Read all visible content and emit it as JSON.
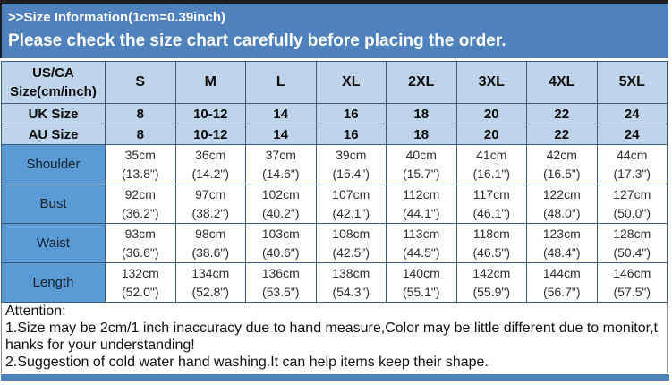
{
  "banner": {
    "line1": ">>Size Information(1cm=0.39inch)",
    "line2": "Please check the size chart carefully before placing the order."
  },
  "table": {
    "corner_header": {
      "line1": "US/CA",
      "line2": "Size(cm/inch)"
    },
    "sizes": [
      "S",
      "M",
      "L",
      "XL",
      "2XL",
      "3XL",
      "4XL",
      "5XL"
    ],
    "size_rows": [
      {
        "label": "UK Size",
        "values": [
          "8",
          "10-12",
          "14",
          "16",
          "18",
          "20",
          "22",
          "24"
        ]
      },
      {
        "label": "AU Size",
        "values": [
          "8",
          "10-12",
          "14",
          "16",
          "18",
          "20",
          "22",
          "24"
        ]
      }
    ],
    "measure_rows": [
      {
        "label": "Shoulder",
        "cm": [
          "35cm",
          "36cm",
          "37cm",
          "39cm",
          "40cm",
          "41cm",
          "42cm",
          "44cm"
        ],
        "inch": [
          "(13.8\")",
          "(14.2\")",
          "(14.6\")",
          "(15.4\")",
          "(15.7\")",
          "(16.1\")",
          "(16.5\")",
          "(17.3\")"
        ]
      },
      {
        "label": "Bust",
        "cm": [
          "92cm",
          "97cm",
          "102cm",
          "107cm",
          "112cm",
          "117cm",
          "122cm",
          "127cm"
        ],
        "inch": [
          "(36.2\")",
          "(38.2\")",
          "(40.2\")",
          "(42.1\")",
          "(44.1\")",
          "(46.1\")",
          "(48.0\")",
          "(50.0\")"
        ]
      },
      {
        "label": "Waist",
        "cm": [
          "93cm",
          "98cm",
          "103cm",
          "108cm",
          "113cm",
          "118cm",
          "123cm",
          "128cm"
        ],
        "inch": [
          "(36.6\")",
          "(38.6\")",
          "(40.6\")",
          "(42.5\")",
          "(44.5\")",
          "(46.5\")",
          "(48.4\")",
          "(50.4\")"
        ]
      },
      {
        "label": "Length",
        "cm": [
          "132cm",
          "134cm",
          "136cm",
          "138cm",
          "140cm",
          "142cm",
          "144cm",
          "146cm"
        ],
        "inch": [
          "(52.0\")",
          "(52.8\")",
          "(53.5\")",
          "(54.3\")",
          "(55.1\")",
          "(55.9\")",
          "(56.7\")",
          "(57.5\")"
        ]
      }
    ]
  },
  "attention": {
    "title": "Attention:",
    "lines": [
      "1.Size may be 2cm/1 inch inaccuracy due to hand measure,Color may be little different due to monitor,t",
      "hanks for your understanding!",
      "2.Suggestion of cold water hand washing.It can help items keep their shape."
    ]
  },
  "colors": {
    "banner_blue": "#4f81bd",
    "header_light_blue": "#bdd4ea",
    "label_blue": "#5b9bd5",
    "grid_border": "#3a5a7c"
  }
}
